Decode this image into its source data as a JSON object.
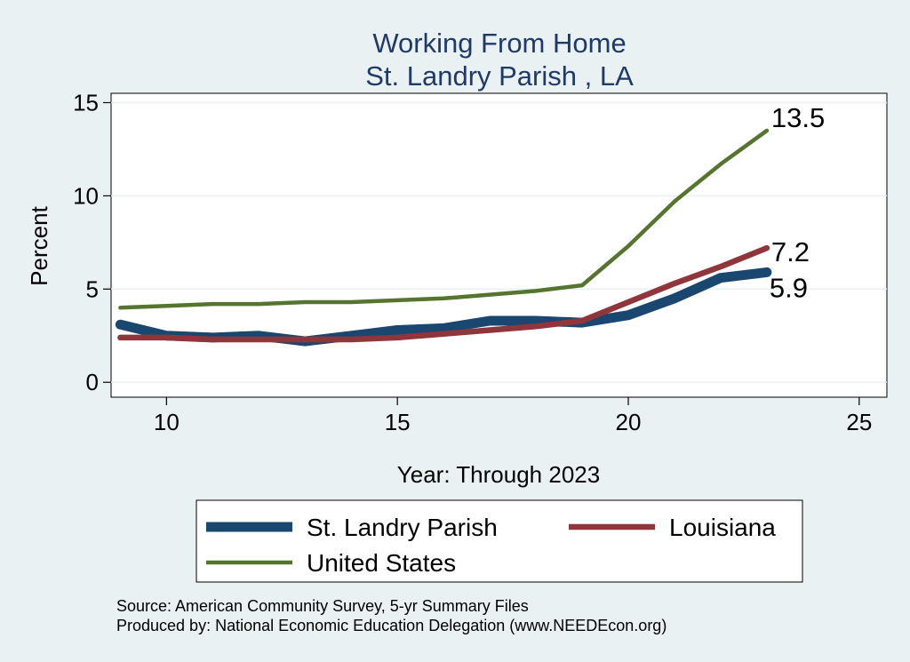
{
  "chart_data": {
    "type": "line",
    "title": "Working From Home",
    "subtitle": "St. Landry Parish , LA",
    "xlabel": "Year: Through 2023",
    "ylabel": "Percent",
    "xlim": [
      8.8,
      25.6
    ],
    "ylim": [
      -0.8,
      15.5
    ],
    "xticks": [
      10,
      15,
      20,
      25
    ],
    "yticks": [
      0,
      5,
      10,
      15
    ],
    "grid": true,
    "legend_position": "bottom",
    "series": [
      {
        "name": "St. Landry Parish",
        "color": "#1a476f",
        "width": "thick",
        "x": [
          9,
          10,
          11,
          12,
          13,
          14,
          15,
          16,
          17,
          18,
          19,
          20,
          21,
          22,
          23
        ],
        "y": [
          3.1,
          2.5,
          2.4,
          2.5,
          2.2,
          2.5,
          2.8,
          2.9,
          3.3,
          3.3,
          3.2,
          3.6,
          4.5,
          5.6,
          5.9
        ],
        "end_label": "5.9"
      },
      {
        "name": "Louisiana",
        "color": "#90353b",
        "width": "medium",
        "x": [
          9,
          10,
          11,
          12,
          13,
          14,
          15,
          16,
          17,
          18,
          19,
          20,
          21,
          22,
          23
        ],
        "y": [
          2.4,
          2.4,
          2.3,
          2.3,
          2.3,
          2.3,
          2.4,
          2.6,
          2.8,
          3.0,
          3.3,
          4.3,
          5.3,
          6.2,
          7.2
        ],
        "end_label": "7.2"
      },
      {
        "name": "United States",
        "color": "#55752f",
        "width": "thin",
        "x": [
          9,
          10,
          11,
          12,
          13,
          14,
          15,
          16,
          17,
          18,
          19,
          20,
          21,
          22,
          23
        ],
        "y": [
          4.0,
          4.1,
          4.2,
          4.2,
          4.3,
          4.3,
          4.4,
          4.5,
          4.7,
          4.9,
          5.2,
          7.3,
          9.7,
          11.7,
          13.5
        ],
        "end_label": "13.5"
      }
    ]
  },
  "source_note": "Source: American Community Survey, 5-yr Summary Files",
  "producer_note": "Produced by: National Economic Education Delegation (www.NEEDEcon.org)"
}
